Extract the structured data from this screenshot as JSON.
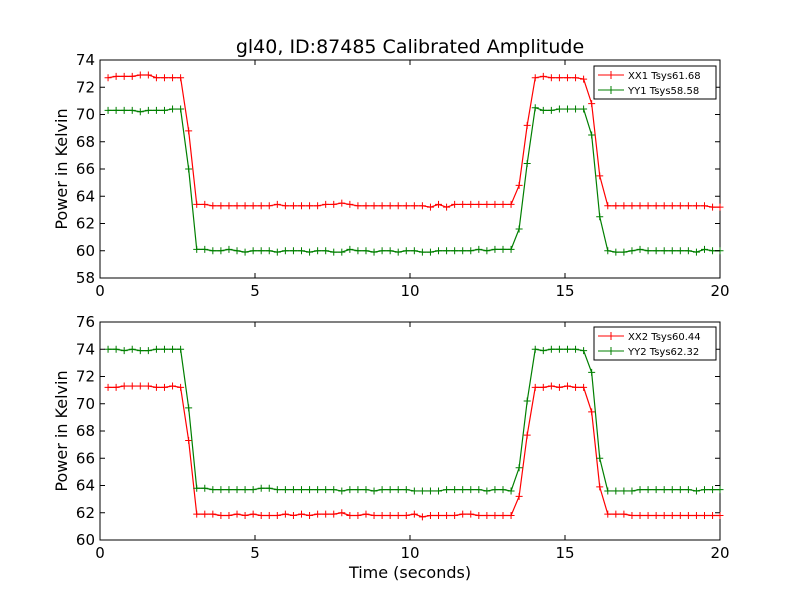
{
  "title": "gl40, ID:87485 Calibrated Amplitude",
  "chart_data": [
    {
      "type": "line",
      "title": "gl40, ID:87485 Calibrated Amplitude",
      "xlabel": "",
      "ylabel": "Power in Kelvin",
      "xlim": [
        0,
        20
      ],
      "ylim": [
        58,
        74
      ],
      "xticks": [
        "0",
        "5",
        "10",
        "15",
        "20"
      ],
      "yticks": [
        "58",
        "60",
        "62",
        "64",
        "66",
        "68",
        "70",
        "72",
        "74"
      ],
      "legend_position": "top-right",
      "grid": false,
      "series": [
        {
          "name": "XX1 Tsys61.68",
          "color": "#ff0000",
          "x": [
            0.26,
            0.52,
            0.78,
            1.04,
            1.3,
            1.56,
            1.82,
            2.08,
            2.34,
            2.6,
            2.86,
            3.12,
            3.38,
            3.64,
            3.9,
            4.16,
            4.42,
            4.68,
            4.94,
            5.2,
            5.46,
            5.72,
            5.98,
            6.24,
            6.5,
            6.76,
            7.02,
            7.28,
            7.54,
            7.8,
            8.06,
            8.32,
            8.58,
            8.84,
            9.1,
            9.36,
            9.62,
            9.88,
            10.14,
            10.4,
            10.66,
            10.92,
            11.18,
            11.44,
            11.7,
            11.96,
            12.22,
            12.48,
            12.74,
            13.0,
            13.26,
            13.52,
            13.78,
            14.04,
            14.3,
            14.56,
            14.82,
            15.08,
            15.34,
            15.6,
            15.86,
            16.12,
            16.38,
            16.64,
            16.9,
            17.16,
            17.42,
            17.68,
            17.94,
            18.2,
            18.46,
            18.72,
            18.98,
            19.24,
            19.5,
            19.76,
            20.0
          ],
          "y": [
            72.7,
            72.8,
            72.8,
            72.8,
            72.9,
            72.9,
            72.7,
            72.7,
            72.7,
            72.7,
            68.8,
            63.4,
            63.4,
            63.3,
            63.3,
            63.3,
            63.3,
            63.3,
            63.3,
            63.3,
            63.3,
            63.4,
            63.3,
            63.3,
            63.3,
            63.3,
            63.3,
            63.4,
            63.4,
            63.5,
            63.4,
            63.3,
            63.3,
            63.3,
            63.3,
            63.3,
            63.3,
            63.3,
            63.3,
            63.3,
            63.2,
            63.4,
            63.2,
            63.4,
            63.4,
            63.4,
            63.4,
            63.4,
            63.4,
            63.4,
            63.4,
            64.8,
            69.2,
            72.7,
            72.8,
            72.7,
            72.7,
            72.7,
            72.7,
            72.6,
            70.8,
            65.5,
            63.3,
            63.3,
            63.3,
            63.3,
            63.3,
            63.3,
            63.3,
            63.3,
            63.3,
            63.3,
            63.3,
            63.3,
            63.3,
            63.2,
            63.2
          ]
        },
        {
          "name": "YY1 Tsys58.58",
          "color": "#007f00",
          "x": [
            0.26,
            0.52,
            0.78,
            1.04,
            1.3,
            1.56,
            1.82,
            2.08,
            2.34,
            2.6,
            2.86,
            3.12,
            3.38,
            3.64,
            3.9,
            4.16,
            4.42,
            4.68,
            4.94,
            5.2,
            5.46,
            5.72,
            5.98,
            6.24,
            6.5,
            6.76,
            7.02,
            7.28,
            7.54,
            7.8,
            8.06,
            8.32,
            8.58,
            8.84,
            9.1,
            9.36,
            9.62,
            9.88,
            10.14,
            10.4,
            10.66,
            10.92,
            11.18,
            11.44,
            11.7,
            11.96,
            12.22,
            12.48,
            12.74,
            13.0,
            13.26,
            13.52,
            13.78,
            14.04,
            14.3,
            14.56,
            14.82,
            15.08,
            15.34,
            15.6,
            15.86,
            16.12,
            16.38,
            16.64,
            16.9,
            17.16,
            17.42,
            17.68,
            17.94,
            18.2,
            18.46,
            18.72,
            18.98,
            19.24,
            19.5,
            19.76,
            20.0
          ],
          "y": [
            70.3,
            70.3,
            70.3,
            70.3,
            70.2,
            70.3,
            70.3,
            70.3,
            70.4,
            70.4,
            66.0,
            60.1,
            60.1,
            60.0,
            60.0,
            60.1,
            60.0,
            59.9,
            60.0,
            60.0,
            60.0,
            59.9,
            60.0,
            60.0,
            60.0,
            59.9,
            60.0,
            60.0,
            59.9,
            59.9,
            60.1,
            60.0,
            60.0,
            59.9,
            60.0,
            60.0,
            59.9,
            60.0,
            60.0,
            59.9,
            59.9,
            60.0,
            60.0,
            60.0,
            60.0,
            60.0,
            60.1,
            60.0,
            60.1,
            60.1,
            60.1,
            61.6,
            66.4,
            70.5,
            70.3,
            70.3,
            70.4,
            70.4,
            70.4,
            70.4,
            68.5,
            62.5,
            60.0,
            59.9,
            59.9,
            60.0,
            60.1,
            60.0,
            60.0,
            60.0,
            60.0,
            60.0,
            60.0,
            59.9,
            60.1,
            60.0,
            60.0
          ]
        }
      ]
    },
    {
      "type": "line",
      "title": "",
      "xlabel": "Time (seconds)",
      "ylabel": "Power in Kelvin",
      "xlim": [
        0,
        20
      ],
      "ylim": [
        60,
        76
      ],
      "xticks": [
        "0",
        "5",
        "10",
        "15",
        "20"
      ],
      "yticks": [
        "60",
        "62",
        "64",
        "66",
        "68",
        "70",
        "72",
        "74",
        "76"
      ],
      "legend_position": "top-right",
      "grid": false,
      "series": [
        {
          "name": "XX2 Tsys60.44",
          "color": "#ff0000",
          "x": [
            0.26,
            0.52,
            0.78,
            1.04,
            1.3,
            1.56,
            1.82,
            2.08,
            2.34,
            2.6,
            2.86,
            3.12,
            3.38,
            3.64,
            3.9,
            4.16,
            4.42,
            4.68,
            4.94,
            5.2,
            5.46,
            5.72,
            5.98,
            6.24,
            6.5,
            6.76,
            7.02,
            7.28,
            7.54,
            7.8,
            8.06,
            8.32,
            8.58,
            8.84,
            9.1,
            9.36,
            9.62,
            9.88,
            10.14,
            10.4,
            10.66,
            10.92,
            11.18,
            11.44,
            11.7,
            11.96,
            12.22,
            12.48,
            12.74,
            13.0,
            13.26,
            13.52,
            13.78,
            14.04,
            14.3,
            14.56,
            14.82,
            15.08,
            15.34,
            15.6,
            15.86,
            16.12,
            16.38,
            16.64,
            16.9,
            17.16,
            17.42,
            17.68,
            17.94,
            18.2,
            18.46,
            18.72,
            18.98,
            19.24,
            19.5,
            19.76,
            20.0
          ],
          "y": [
            71.2,
            71.2,
            71.3,
            71.3,
            71.3,
            71.3,
            71.2,
            71.2,
            71.3,
            71.2,
            67.3,
            61.9,
            61.9,
            61.9,
            61.8,
            61.8,
            61.9,
            61.8,
            61.9,
            61.8,
            61.8,
            61.8,
            61.9,
            61.8,
            61.9,
            61.8,
            61.9,
            61.9,
            61.9,
            62.0,
            61.8,
            61.8,
            61.9,
            61.8,
            61.8,
            61.8,
            61.8,
            61.8,
            61.9,
            61.7,
            61.8,
            61.8,
            61.8,
            61.8,
            61.9,
            61.9,
            61.8,
            61.8,
            61.8,
            61.8,
            61.8,
            63.2,
            67.7,
            71.2,
            71.2,
            71.3,
            71.2,
            71.3,
            71.2,
            71.2,
            69.4,
            63.9,
            61.9,
            61.9,
            61.9,
            61.8,
            61.8,
            61.8,
            61.8,
            61.8,
            61.8,
            61.8,
            61.8,
            61.8,
            61.8,
            61.8,
            61.8
          ]
        },
        {
          "name": "YY2 Tsys62.32",
          "color": "#007f00",
          "x": [
            0.26,
            0.52,
            0.78,
            1.04,
            1.3,
            1.56,
            1.82,
            2.08,
            2.34,
            2.6,
            2.86,
            3.12,
            3.38,
            3.64,
            3.9,
            4.16,
            4.42,
            4.68,
            4.94,
            5.2,
            5.46,
            5.72,
            5.98,
            6.24,
            6.5,
            6.76,
            7.02,
            7.28,
            7.54,
            7.8,
            8.06,
            8.32,
            8.58,
            8.84,
            9.1,
            9.36,
            9.62,
            9.88,
            10.14,
            10.4,
            10.66,
            10.92,
            11.18,
            11.44,
            11.7,
            11.96,
            12.22,
            12.48,
            12.74,
            13.0,
            13.26,
            13.52,
            13.78,
            14.04,
            14.3,
            14.56,
            14.82,
            15.08,
            15.34,
            15.6,
            15.86,
            16.12,
            16.38,
            16.64,
            16.9,
            17.16,
            17.42,
            17.68,
            17.94,
            18.2,
            18.46,
            18.72,
            18.98,
            19.24,
            19.5,
            19.76,
            20.0
          ],
          "y": [
            74.0,
            74.0,
            73.9,
            74.0,
            73.9,
            73.9,
            74.0,
            74.0,
            74.0,
            74.0,
            69.7,
            63.8,
            63.8,
            63.7,
            63.7,
            63.7,
            63.7,
            63.7,
            63.7,
            63.8,
            63.8,
            63.7,
            63.7,
            63.7,
            63.7,
            63.7,
            63.7,
            63.7,
            63.7,
            63.6,
            63.7,
            63.7,
            63.7,
            63.6,
            63.7,
            63.7,
            63.7,
            63.7,
            63.6,
            63.6,
            63.6,
            63.6,
            63.7,
            63.7,
            63.7,
            63.7,
            63.7,
            63.6,
            63.7,
            63.7,
            63.6,
            65.3,
            70.2,
            74.0,
            73.9,
            74.0,
            74.0,
            74.0,
            74.0,
            73.9,
            72.3,
            66.0,
            63.6,
            63.6,
            63.6,
            63.6,
            63.7,
            63.7,
            63.7,
            63.7,
            63.7,
            63.7,
            63.7,
            63.6,
            63.7,
            63.7,
            63.7
          ]
        }
      ]
    }
  ]
}
